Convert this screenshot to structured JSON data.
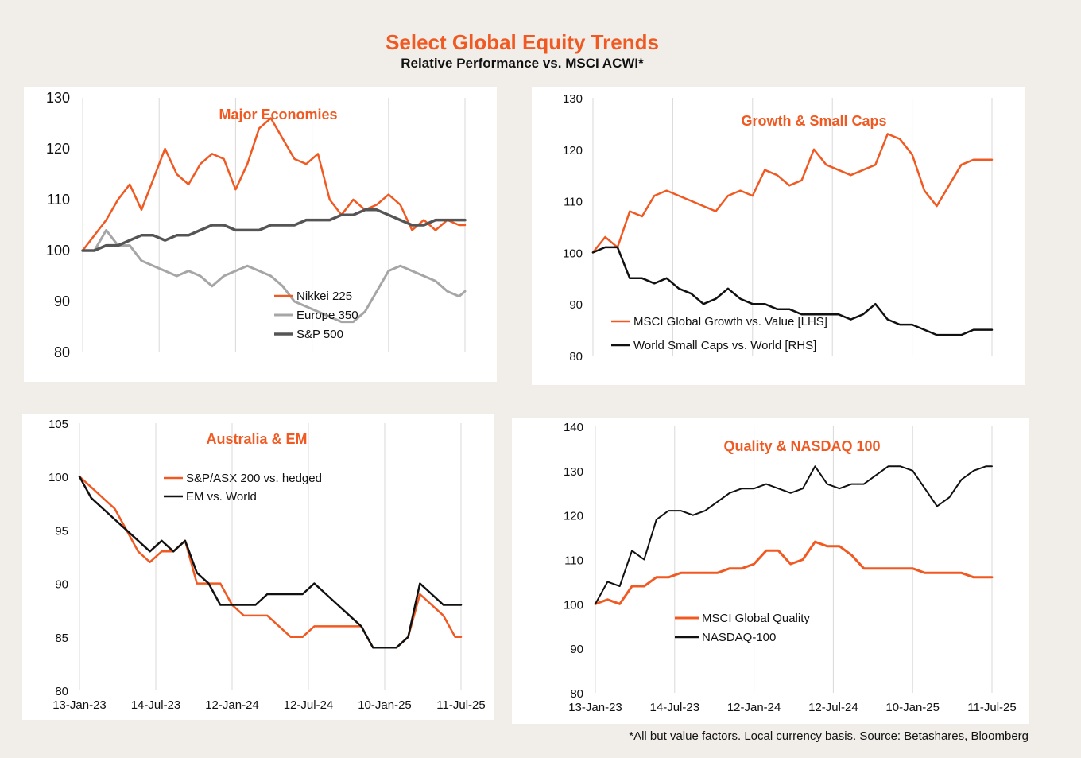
{
  "title": "Select Global Equity Trends",
  "subtitle": "Relative Performance vs. MSCI ACWI*",
  "footnote": "*All but value factors. Local currency basis.  Source: Betashares, Bloomberg",
  "chart_data": [
    {
      "id": "major",
      "type": "line",
      "title": "Major Economies",
      "ylim": [
        80,
        130
      ],
      "yticks": [
        130,
        120,
        110,
        100,
        90,
        80
      ],
      "xlim": [
        0,
        130
      ],
      "xticks_dates": [
        "13-Jan-23",
        "14-Jul-23",
        "12-Jan-24",
        "12-Jul-24",
        "10-Jan-25",
        "11-Jul-25"
      ],
      "show_xtick_labels": false,
      "x": [
        0,
        4,
        8,
        12,
        16,
        20,
        24,
        28,
        32,
        36,
        40,
        44,
        48,
        52,
        56,
        60,
        64,
        68,
        72,
        76,
        80,
        84,
        88,
        92,
        96,
        100,
        104,
        108,
        112,
        116,
        120,
        124,
        128,
        130
      ],
      "series": [
        {
          "name": "Nikkei 225",
          "color": "#f05a22",
          "width": 2.5,
          "values": [
            100,
            103,
            106,
            110,
            113,
            108,
            114,
            120,
            115,
            113,
            117,
            119,
            118,
            112,
            117,
            124,
            126,
            122,
            118,
            117,
            119,
            110,
            107,
            110,
            108,
            109,
            111,
            109,
            104,
            106,
            104,
            106,
            105,
            105
          ]
        },
        {
          "name": "Europe 350",
          "color": "#a6a6a6",
          "width": 3,
          "values": [
            100,
            100,
            104,
            101,
            101,
            98,
            97,
            96,
            95,
            96,
            95,
            93,
            95,
            96,
            97,
            96,
            95,
            93,
            90,
            89,
            88,
            87,
            86,
            86,
            88,
            92,
            96,
            97,
            96,
            95,
            94,
            92,
            91,
            92
          ]
        },
        {
          "name": "S&P 500",
          "color": "#555555",
          "width": 3.5,
          "values": [
            100,
            100,
            101,
            101,
            102,
            103,
            103,
            102,
            103,
            103,
            104,
            105,
            105,
            104,
            104,
            104,
            105,
            105,
            105,
            106,
            106,
            106,
            107,
            107,
            108,
            108,
            107,
            106,
            105,
            105,
            106,
            106,
            106,
            106
          ]
        }
      ]
    },
    {
      "id": "growth",
      "type": "line",
      "title": "Growth & Small Caps",
      "ylim": [
        80,
        130
      ],
      "yticks": [
        130,
        120,
        110,
        100,
        90,
        80
      ],
      "xlim": [
        0,
        130
      ],
      "xticks_dates": [
        "13-Jan-23",
        "14-Jul-23",
        "12-Jan-24",
        "12-Jul-24",
        "10-Jan-25",
        "11-Jul-25"
      ],
      "show_xtick_labels": false,
      "x": [
        0,
        4,
        8,
        12,
        16,
        20,
        24,
        28,
        32,
        36,
        40,
        44,
        48,
        52,
        56,
        60,
        64,
        68,
        72,
        76,
        80,
        84,
        88,
        92,
        96,
        100,
        104,
        108,
        112,
        116,
        120,
        124,
        128,
        130
      ],
      "series": [
        {
          "name": "MSCI Global Growth vs. Value [LHS]",
          "color": "#f05a22",
          "width": 2.5,
          "values": [
            100,
            103,
            101,
            108,
            107,
            111,
            112,
            111,
            110,
            109,
            108,
            111,
            112,
            111,
            116,
            115,
            113,
            114,
            120,
            117,
            116,
            115,
            116,
            117,
            123,
            122,
            119,
            112,
            109,
            113,
            117,
            118,
            118,
            118
          ]
        },
        {
          "name": "World Small Caps vs. World [RHS]",
          "color": "#111111",
          "width": 2.5,
          "values": [
            100,
            101,
            101,
            95,
            95,
            94,
            95,
            93,
            92,
            90,
            91,
            93,
            91,
            90,
            90,
            89,
            89,
            88,
            88,
            88,
            88,
            87,
            88,
            90,
            87,
            86,
            86,
            85,
            84,
            84,
            84,
            85,
            85,
            85
          ]
        }
      ]
    },
    {
      "id": "aus",
      "type": "line",
      "title": "Australia & EM",
      "ylim": [
        80,
        105
      ],
      "yticks": [
        105,
        100,
        95,
        90,
        85,
        80
      ],
      "xlim": [
        0,
        130
      ],
      "xticks_dates": [
        "13-Jan-23",
        "14-Jul-23",
        "12-Jan-24",
        "12-Jul-24",
        "10-Jan-25",
        "11-Jul-25"
      ],
      "show_xtick_labels": true,
      "x": [
        0,
        4,
        8,
        12,
        16,
        20,
        24,
        28,
        32,
        36,
        40,
        44,
        48,
        52,
        56,
        60,
        64,
        68,
        72,
        76,
        80,
        84,
        88,
        92,
        96,
        100,
        104,
        108,
        112,
        116,
        120,
        124,
        128,
        130
      ],
      "series": [
        {
          "name": "S&P/ASX 200 vs. hedged",
          "color": "#f05a22",
          "width": 2.5,
          "values": [
            100,
            99,
            98,
            97,
            95,
            93,
            92,
            93,
            93,
            94,
            90,
            90,
            90,
            88,
            87,
            87,
            87,
            86,
            85,
            85,
            86,
            86,
            86,
            86,
            86,
            84,
            84,
            84,
            85,
            89,
            88,
            87,
            85,
            85
          ]
        },
        {
          "name": "EM vs. World",
          "color": "#111111",
          "width": 2.5,
          "values": [
            100,
            98,
            97,
            96,
            95,
            94,
            93,
            94,
            93,
            94,
            91,
            90,
            88,
            88,
            88,
            88,
            89,
            89,
            89,
            89,
            90,
            89,
            88,
            87,
            86,
            84,
            84,
            84,
            85,
            90,
            89,
            88,
            88,
            88
          ]
        }
      ]
    },
    {
      "id": "quality",
      "type": "line",
      "title": "Quality & NASDAQ 100",
      "ylim": [
        80,
        140
      ],
      "yticks": [
        140,
        130,
        120,
        110,
        100,
        90,
        80
      ],
      "xlim": [
        0,
        130
      ],
      "xticks_dates": [
        "13-Jan-23",
        "14-Jul-23",
        "12-Jan-24",
        "12-Jul-24",
        "10-Jan-25",
        "11-Jul-25"
      ],
      "show_xtick_labels": true,
      "x": [
        0,
        4,
        8,
        12,
        16,
        20,
        24,
        28,
        32,
        36,
        40,
        44,
        48,
        52,
        56,
        60,
        64,
        68,
        72,
        76,
        80,
        84,
        88,
        92,
        96,
        100,
        104,
        108,
        112,
        116,
        120,
        124,
        128,
        130
      ],
      "series": [
        {
          "name": "MSCI Global Quality",
          "color": "#f05a22",
          "width": 3,
          "values": [
            100,
            101,
            100,
            104,
            104,
            106,
            106,
            107,
            107,
            107,
            107,
            108,
            108,
            109,
            112,
            112,
            109,
            110,
            114,
            113,
            113,
            111,
            108,
            108,
            108,
            108,
            108,
            107,
            107,
            107,
            107,
            106,
            106,
            106
          ]
        },
        {
          "name": "NASDAQ-100",
          "color": "#111111",
          "width": 2,
          "values": [
            100,
            105,
            104,
            112,
            110,
            119,
            121,
            121,
            120,
            121,
            123,
            125,
            126,
            126,
            127,
            126,
            125,
            126,
            131,
            127,
            126,
            127,
            127,
            129,
            131,
            131,
            130,
            126,
            122,
            124,
            128,
            130,
            131,
            131
          ]
        }
      ]
    }
  ]
}
